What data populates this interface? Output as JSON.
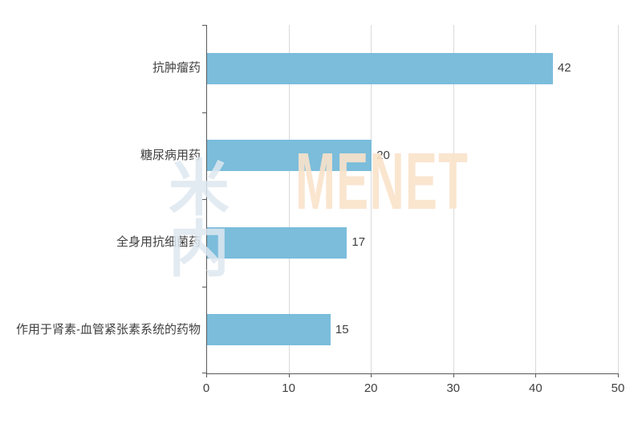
{
  "chart_data": {
    "type": "bar",
    "orientation": "horizontal",
    "title": "",
    "xlabel": "",
    "ylabel": "",
    "categories": [
      "抗肿瘤药",
      "糖尿病用药",
      "全身用抗细菌药",
      "作用于肾素-血管紧张素系统的药物"
    ],
    "values": [
      42,
      20,
      17,
      15
    ],
    "data_labels": [
      "42",
      "20",
      "17",
      "15"
    ],
    "x_ticks": [
      "0",
      "10",
      "20",
      "30",
      "40",
      "50"
    ],
    "x_tick_values": [
      0,
      10,
      20,
      30,
      40,
      50
    ],
    "xlim": [
      0,
      50
    ],
    "grid": "vertical-gridlines-on",
    "legend": "none",
    "bar_color": "#7BBDDB",
    "axis_color": "#595959",
    "gridline_color": "#D9D9D9",
    "text_color": "#404040"
  },
  "watermark": {
    "cjk": "米内",
    "latin": "MENET",
    "cjk_color": "rgba(222,232,240,0.85)",
    "latin_color": "rgba(250,226,202,0.9)"
  }
}
